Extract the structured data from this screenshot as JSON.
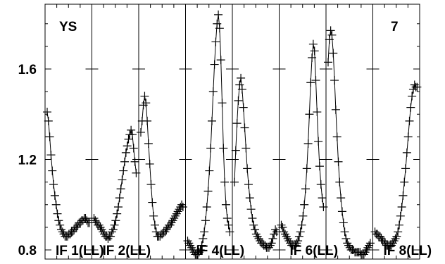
{
  "chart_data": {
    "type": "scatter",
    "title": "",
    "xlabel": "",
    "ylabel": "",
    "ylim": [
      0.78,
      1.86
    ],
    "yticks": [
      {
        "value": 0.8,
        "label": "0.8"
      },
      {
        "value": 1.2,
        "label": "1.2"
      },
      {
        "value": 1.6,
        "label": "1.6"
      }
    ],
    "corner_labels": {
      "left": "YS",
      "right": "7"
    },
    "panels": [
      {
        "label": "IF 1(LL)",
        "points": [
          [
            0.0,
            1.41
          ],
          [
            0.03,
            1.37
          ],
          [
            0.06,
            1.3
          ],
          [
            0.09,
            1.22
          ],
          [
            0.12,
            1.15
          ],
          [
            0.15,
            1.09
          ],
          [
            0.18,
            1.04
          ],
          [
            0.21,
            1.0
          ],
          [
            0.24,
            0.96
          ],
          [
            0.27,
            0.93
          ],
          [
            0.3,
            0.91
          ],
          [
            0.33,
            0.89
          ],
          [
            0.36,
            0.88
          ],
          [
            0.39,
            0.87
          ],
          [
            0.42,
            0.86
          ],
          [
            0.45,
            0.86
          ],
          [
            0.48,
            0.86
          ],
          [
            0.51,
            0.87
          ],
          [
            0.54,
            0.87
          ],
          [
            0.57,
            0.88
          ],
          [
            0.6,
            0.88
          ],
          [
            0.63,
            0.89
          ],
          [
            0.66,
            0.9
          ],
          [
            0.69,
            0.9
          ],
          [
            0.72,
            0.91
          ],
          [
            0.75,
            0.92
          ],
          [
            0.78,
            0.92
          ],
          [
            0.81,
            0.93
          ],
          [
            0.84,
            0.93
          ],
          [
            0.87,
            0.94
          ],
          [
            0.9,
            0.94
          ],
          [
            0.93,
            0.93
          ],
          [
            0.96,
            0.92
          ],
          [
            0.99,
            0.92
          ]
        ]
      },
      {
        "label": "IF 2(LL)",
        "points": [
          [
            0.0,
            0.94
          ],
          [
            0.03,
            0.93
          ],
          [
            0.06,
            0.92
          ],
          [
            0.09,
            0.91
          ],
          [
            0.12,
            0.91
          ],
          [
            0.15,
            0.9
          ],
          [
            0.18,
            0.89
          ],
          [
            0.21,
            0.88
          ],
          [
            0.24,
            0.87
          ],
          [
            0.27,
            0.86
          ],
          [
            0.3,
            0.86
          ],
          [
            0.33,
            0.85
          ],
          [
            0.36,
            0.86
          ],
          [
            0.39,
            0.86
          ],
          [
            0.42,
            0.88
          ],
          [
            0.45,
            0.89
          ],
          [
            0.48,
            0.91
          ],
          [
            0.51,
            0.93
          ],
          [
            0.54,
            0.96
          ],
          [
            0.57,
            0.99
          ],
          [
            0.6,
            1.03
          ],
          [
            0.63,
            1.07
          ],
          [
            0.66,
            1.11
          ],
          [
            0.69,
            1.15
          ],
          [
            0.72,
            1.19
          ],
          [
            0.75,
            1.23
          ],
          [
            0.78,
            1.26
          ],
          [
            0.81,
            1.29
          ],
          [
            0.84,
            1.31
          ],
          [
            0.87,
            1.33
          ],
          [
            0.9,
            1.31
          ],
          [
            0.93,
            1.25
          ],
          [
            0.96,
            1.19
          ],
          [
            0.99,
            1.14
          ]
        ]
      },
      {
        "label": "",
        "points": [
          [
            0.0,
            1.32
          ],
          [
            0.03,
            1.37
          ],
          [
            0.06,
            1.44
          ],
          [
            0.09,
            1.48
          ],
          [
            0.12,
            1.45
          ],
          [
            0.15,
            1.37
          ],
          [
            0.18,
            1.27
          ],
          [
            0.21,
            1.18
          ],
          [
            0.24,
            1.09
          ],
          [
            0.27,
            1.01
          ],
          [
            0.3,
            0.95
          ],
          [
            0.33,
            0.91
          ],
          [
            0.36,
            0.88
          ],
          [
            0.39,
            0.86
          ],
          [
            0.42,
            0.86
          ],
          [
            0.45,
            0.86
          ],
          [
            0.48,
            0.87
          ],
          [
            0.51,
            0.87
          ],
          [
            0.54,
            0.88
          ],
          [
            0.57,
            0.88
          ],
          [
            0.6,
            0.89
          ],
          [
            0.63,
            0.9
          ],
          [
            0.66,
            0.91
          ],
          [
            0.69,
            0.91
          ],
          [
            0.72,
            0.92
          ],
          [
            0.75,
            0.93
          ],
          [
            0.78,
            0.94
          ],
          [
            0.81,
            0.95
          ],
          [
            0.84,
            0.96
          ],
          [
            0.87,
            0.97
          ],
          [
            0.9,
            0.98
          ],
          [
            0.93,
            0.99
          ],
          [
            0.96,
            1.0
          ],
          [
            0.99,
            0.99
          ]
        ]
      },
      {
        "label": "IF 4(LL)",
        "points": [
          [
            0.0,
            0.84
          ],
          [
            0.03,
            0.83
          ],
          [
            0.06,
            0.82
          ],
          [
            0.09,
            0.81
          ],
          [
            0.12,
            0.8
          ],
          [
            0.15,
            0.79
          ],
          [
            0.18,
            0.78
          ],
          [
            0.21,
            0.78
          ],
          [
            0.24,
            0.78
          ],
          [
            0.27,
            0.79
          ],
          [
            0.3,
            0.8
          ],
          [
            0.33,
            0.82
          ],
          [
            0.36,
            0.85
          ],
          [
            0.39,
            0.88
          ],
          [
            0.42,
            0.93
          ],
          [
            0.45,
            0.99
          ],
          [
            0.48,
            1.06
          ],
          [
            0.51,
            1.15
          ],
          [
            0.54,
            1.25
          ],
          [
            0.57,
            1.37
          ],
          [
            0.6,
            1.5
          ],
          [
            0.63,
            1.62
          ],
          [
            0.66,
            1.72
          ],
          [
            0.69,
            1.8
          ],
          [
            0.72,
            1.84
          ],
          [
            0.75,
            1.78
          ],
          [
            0.78,
            1.64
          ],
          [
            0.81,
            1.45
          ],
          [
            0.84,
            1.25
          ],
          [
            0.87,
            1.1
          ],
          [
            0.9,
            1.0
          ],
          [
            0.93,
            0.94
          ],
          [
            0.96,
            0.91
          ],
          [
            0.99,
            0.88
          ]
        ]
      },
      {
        "label": "",
        "points": [
          [
            0.0,
            1.1
          ],
          [
            0.03,
            1.24
          ],
          [
            0.06,
            1.36
          ],
          [
            0.09,
            1.46
          ],
          [
            0.12,
            1.53
          ],
          [
            0.15,
            1.56
          ],
          [
            0.18,
            1.51
          ],
          [
            0.21,
            1.43
          ],
          [
            0.24,
            1.34
          ],
          [
            0.27,
            1.25
          ],
          [
            0.3,
            1.16
          ],
          [
            0.33,
            1.09
          ],
          [
            0.36,
            1.03
          ],
          [
            0.39,
            0.98
          ],
          [
            0.42,
            0.94
          ],
          [
            0.45,
            0.91
          ],
          [
            0.48,
            0.89
          ],
          [
            0.51,
            0.87
          ],
          [
            0.54,
            0.86
          ],
          [
            0.57,
            0.85
          ],
          [
            0.6,
            0.84
          ],
          [
            0.63,
            0.83
          ],
          [
            0.66,
            0.83
          ],
          [
            0.69,
            0.82
          ],
          [
            0.72,
            0.82
          ],
          [
            0.75,
            0.81
          ],
          [
            0.78,
            0.81
          ],
          [
            0.81,
            0.81
          ],
          [
            0.84,
            0.82
          ],
          [
            0.87,
            0.83
          ],
          [
            0.9,
            0.85
          ],
          [
            0.93,
            0.87
          ],
          [
            0.96,
            0.89
          ],
          [
            0.99,
            0.88
          ]
        ]
      },
      {
        "label": "IF 6(LL)",
        "points": [
          [
            0.0,
            0.91
          ],
          [
            0.03,
            0.9
          ],
          [
            0.06,
            0.88
          ],
          [
            0.09,
            0.87
          ],
          [
            0.12,
            0.86
          ],
          [
            0.15,
            0.85
          ],
          [
            0.18,
            0.84
          ],
          [
            0.21,
            0.83
          ],
          [
            0.24,
            0.82
          ],
          [
            0.27,
            0.82
          ],
          [
            0.3,
            0.82
          ],
          [
            0.33,
            0.82
          ],
          [
            0.36,
            0.83
          ],
          [
            0.39,
            0.84
          ],
          [
            0.42,
            0.86
          ],
          [
            0.45,
            0.88
          ],
          [
            0.48,
            0.91
          ],
          [
            0.51,
            0.95
          ],
          [
            0.54,
            1.0
          ],
          [
            0.57,
            1.07
          ],
          [
            0.6,
            1.16
          ],
          [
            0.63,
            1.27
          ],
          [
            0.66,
            1.4
          ],
          [
            0.69,
            1.54
          ],
          [
            0.72,
            1.65
          ],
          [
            0.75,
            1.71
          ],
          [
            0.78,
            1.68
          ],
          [
            0.81,
            1.55
          ],
          [
            0.84,
            1.41
          ],
          [
            0.87,
            1.28
          ],
          [
            0.9,
            1.17
          ],
          [
            0.93,
            1.09
          ],
          [
            0.96,
            1.03
          ],
          [
            0.99,
            0.99
          ]
        ]
      },
      {
        "label": "",
        "points": [
          [
            0.0,
            1.63
          ],
          [
            0.03,
            1.73
          ],
          [
            0.06,
            1.77
          ],
          [
            0.09,
            1.75
          ],
          [
            0.12,
            1.67
          ],
          [
            0.15,
            1.55
          ],
          [
            0.18,
            1.42
          ],
          [
            0.21,
            1.3
          ],
          [
            0.24,
            1.19
          ],
          [
            0.27,
            1.1
          ],
          [
            0.3,
            1.03
          ],
          [
            0.33,
            0.97
          ],
          [
            0.36,
            0.92
          ],
          [
            0.39,
            0.88
          ],
          [
            0.42,
            0.85
          ],
          [
            0.45,
            0.83
          ],
          [
            0.48,
            0.82
          ],
          [
            0.51,
            0.81
          ],
          [
            0.54,
            0.8
          ],
          [
            0.57,
            0.8
          ],
          [
            0.6,
            0.8
          ],
          [
            0.63,
            0.79
          ],
          [
            0.66,
            0.79
          ],
          [
            0.69,
            0.79
          ],
          [
            0.72,
            0.79
          ],
          [
            0.75,
            0.79
          ],
          [
            0.78,
            0.78
          ],
          [
            0.81,
            0.78
          ],
          [
            0.84,
            0.78
          ],
          [
            0.87,
            0.79
          ],
          [
            0.9,
            0.8
          ],
          [
            0.93,
            0.81
          ],
          [
            0.96,
            0.82
          ],
          [
            0.99,
            0.83
          ]
        ]
      },
      {
        "label": "IF 8(LL)",
        "points": [
          [
            0.0,
            0.88
          ],
          [
            0.03,
            0.87
          ],
          [
            0.06,
            0.87
          ],
          [
            0.09,
            0.86
          ],
          [
            0.12,
            0.86
          ],
          [
            0.15,
            0.85
          ],
          [
            0.18,
            0.84
          ],
          [
            0.21,
            0.84
          ],
          [
            0.24,
            0.83
          ],
          [
            0.27,
            0.82
          ],
          [
            0.3,
            0.82
          ],
          [
            0.33,
            0.82
          ],
          [
            0.36,
            0.82
          ],
          [
            0.39,
            0.82
          ],
          [
            0.42,
            0.83
          ],
          [
            0.45,
            0.84
          ],
          [
            0.48,
            0.85
          ],
          [
            0.51,
            0.86
          ],
          [
            0.54,
            0.88
          ],
          [
            0.57,
            0.91
          ],
          [
            0.6,
            0.95
          ],
          [
            0.63,
            0.99
          ],
          [
            0.66,
            1.04
          ],
          [
            0.69,
            1.1
          ],
          [
            0.72,
            1.16
          ],
          [
            0.75,
            1.23
          ],
          [
            0.78,
            1.3
          ],
          [
            0.81,
            1.37
          ],
          [
            0.84,
            1.43
          ],
          [
            0.87,
            1.48
          ],
          [
            0.9,
            1.51
          ],
          [
            0.93,
            1.53
          ],
          [
            0.96,
            1.52
          ],
          [
            0.99,
            1.52
          ]
        ]
      }
    ]
  }
}
